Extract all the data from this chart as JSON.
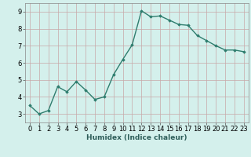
{
  "x": [
    0,
    1,
    2,
    3,
    4,
    5,
    6,
    7,
    8,
    9,
    10,
    11,
    12,
    13,
    14,
    15,
    16,
    17,
    18,
    19,
    20,
    21,
    22,
    23
  ],
  "y": [
    3.5,
    3.0,
    3.2,
    4.6,
    4.3,
    4.9,
    4.4,
    3.85,
    4.0,
    5.3,
    6.2,
    7.05,
    9.05,
    8.7,
    8.75,
    8.5,
    8.25,
    8.2,
    7.6,
    7.3,
    7.0,
    6.75,
    6.75,
    6.65
  ],
  "line_color": "#2e7d6e",
  "marker": "D",
  "marker_size": 1.8,
  "linewidth": 1.0,
  "bg_color": "#d4f0ec",
  "grid_color": "#c8a8a8",
  "xlabel": "Humidex (Indice chaleur)",
  "xlabel_fontsize": 6.5,
  "tick_fontsize": 6.0,
  "xlim": [
    -0.5,
    23.5
  ],
  "ylim": [
    2.5,
    9.5
  ],
  "yticks": [
    3,
    4,
    5,
    6,
    7,
    8,
    9
  ],
  "xticks": [
    0,
    1,
    2,
    3,
    4,
    5,
    6,
    7,
    8,
    9,
    10,
    11,
    12,
    13,
    14,
    15,
    16,
    17,
    18,
    19,
    20,
    21,
    22,
    23
  ]
}
